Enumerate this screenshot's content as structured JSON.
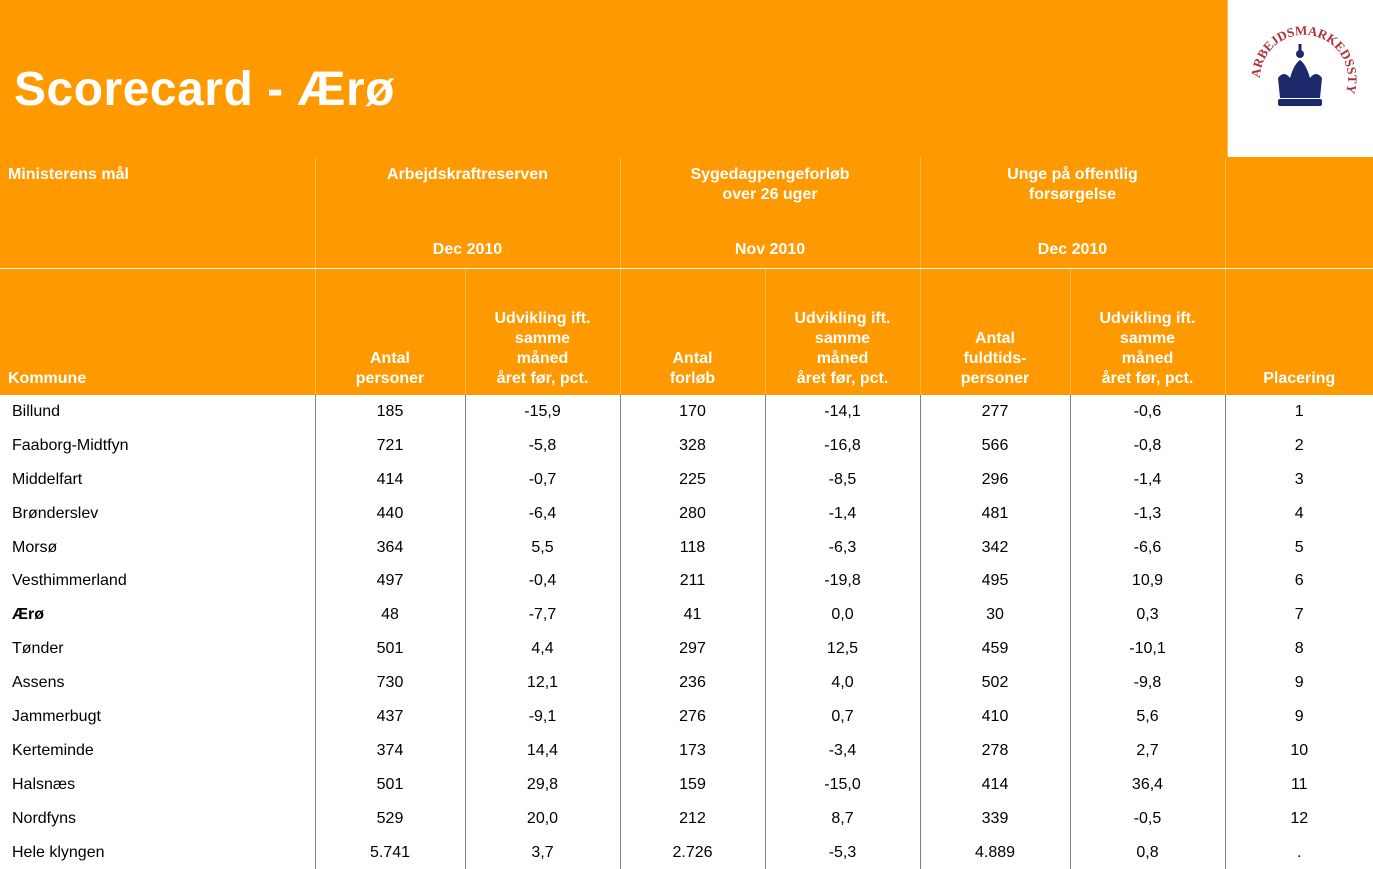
{
  "header": {
    "title": "Scorecard - Ærø",
    "logo_text": "ARBEJDSMARKEDSSTYRELSEN"
  },
  "table": {
    "groups": [
      {
        "lines": [
          "Ministerens mål"
        ]
      },
      {
        "lines": [
          "Arbejdskraftreserven"
        ],
        "period": "Dec 2010"
      },
      {
        "lines": [
          "Sygedagpengeforløb",
          "over 26 uger"
        ],
        "period": "Nov 2010"
      },
      {
        "lines": [
          "Unge på offentlig",
          "forsørgelse"
        ],
        "period": "Dec 2010"
      },
      {
        "lines": []
      }
    ],
    "columns": [
      {
        "lines": [
          "Kommune"
        ]
      },
      {
        "lines": [
          "Antal",
          "personer"
        ]
      },
      {
        "lines": [
          "Udvikling ift.",
          "samme",
          "måned",
          "året før, pct."
        ]
      },
      {
        "lines": [
          "Antal",
          "forløb"
        ]
      },
      {
        "lines": [
          "Udvikling ift.",
          "samme",
          "måned",
          "året før, pct."
        ]
      },
      {
        "lines": [
          "Antal",
          "fuldtids-",
          "personer"
        ]
      },
      {
        "lines": [
          "Udvikling ift.",
          "samme",
          "måned",
          "året før, pct."
        ]
      },
      {
        "lines": [
          "Placering"
        ]
      }
    ],
    "rows": [
      {
        "cells": [
          "Billund",
          "185",
          "-15,9",
          "170",
          "-14,1",
          "277",
          "-0,6",
          "1"
        ]
      },
      {
        "cells": [
          "Faaborg-Midtfyn",
          "721",
          "-5,8",
          "328",
          "-16,8",
          "566",
          "-0,8",
          "2"
        ]
      },
      {
        "cells": [
          "Middelfart",
          "414",
          "-0,7",
          "225",
          "-8,5",
          "296",
          "-1,4",
          "3"
        ]
      },
      {
        "cells": [
          "Brønderslev",
          "440",
          "-6,4",
          "280",
          "-1,4",
          "481",
          "-1,3",
          "4"
        ]
      },
      {
        "cells": [
          "Morsø",
          "364",
          "5,5",
          "118",
          "-6,3",
          "342",
          "-6,6",
          "5"
        ]
      },
      {
        "cells": [
          "Vesthimmerland",
          "497",
          "-0,4",
          "211",
          "-19,8",
          "495",
          "10,9",
          "6"
        ]
      },
      {
        "cells": [
          "Ærø",
          "48",
          "-7,7",
          "41",
          "0,0",
          "30",
          "0,3",
          "7"
        ],
        "bold": true
      },
      {
        "cells": [
          "Tønder",
          "501",
          "4,4",
          "297",
          "12,5",
          "459",
          "-10,1",
          "8"
        ]
      },
      {
        "cells": [
          "Assens",
          "730",
          "12,1",
          "236",
          "4,0",
          "502",
          "-9,8",
          "9"
        ]
      },
      {
        "cells": [
          "Jammerbugt",
          "437",
          "-9,1",
          "276",
          "0,7",
          "410",
          "5,6",
          "9"
        ]
      },
      {
        "cells": [
          "Kerteminde",
          "374",
          "14,4",
          "173",
          "-3,4",
          "278",
          "2,7",
          "10"
        ]
      },
      {
        "cells": [
          "Halsnæs",
          "501",
          "29,8",
          "159",
          "-15,0",
          "414",
          "36,4",
          "11"
        ]
      },
      {
        "cells": [
          "Nordfyns",
          "529",
          "20,0",
          "212",
          "8,7",
          "339",
          "-0,5",
          "12"
        ]
      },
      {
        "cells": [
          "Hele klyngen",
          "5.741",
          "3,7",
          "2.726",
          "-5,3",
          "4.889",
          "0,8",
          "."
        ]
      }
    ]
  }
}
